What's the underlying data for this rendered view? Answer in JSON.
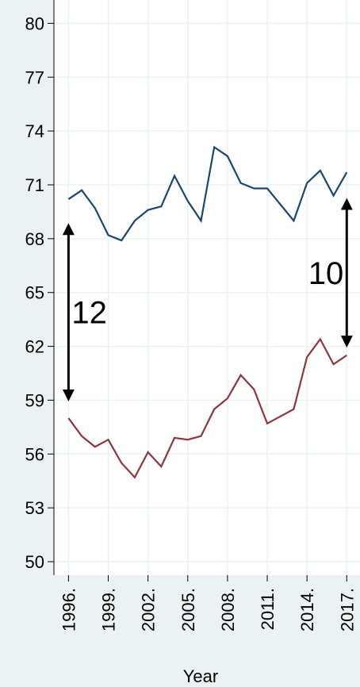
{
  "chart_data": {
    "type": "line",
    "x_label": "Year",
    "x": [
      1996,
      1997,
      1998,
      1999,
      2000,
      2001,
      2002,
      2003,
      2004,
      2005,
      2006,
      2007,
      2008,
      2009,
      2010,
      2011,
      2012,
      2013,
      2014,
      2015,
      2016,
      2017
    ],
    "series": [
      {
        "color": "#1a476f",
        "values": [
          70.2,
          70.7,
          69.7,
          68.2,
          67.9,
          69.0,
          69.6,
          69.8,
          71.5,
          70.1,
          69.0,
          73.1,
          72.6,
          71.1,
          70.8,
          70.8,
          69.9,
          69.0,
          71.1,
          71.8,
          70.4,
          71.7
        ]
      },
      {
        "color": "#90353b",
        "values": [
          58.0,
          57.0,
          56.4,
          56.8,
          55.5,
          54.7,
          56.1,
          55.3,
          56.9,
          56.8,
          57.0,
          58.5,
          59.1,
          60.4,
          59.6,
          57.7,
          58.1,
          58.5,
          61.4,
          62.4,
          61.0,
          61.5
        ]
      }
    ],
    "xlim": [
      1994.9,
      2018.0
    ],
    "ylim": [
      49.25,
      81.3
    ],
    "xticks": [
      {
        "value": 1996,
        "label": "1996."
      },
      {
        "value": 1999,
        "label": "1999."
      },
      {
        "value": 2002,
        "label": "2002."
      },
      {
        "value": 2005,
        "label": "2005."
      },
      {
        "value": 2008,
        "label": "2008."
      },
      {
        "value": 2011,
        "label": "2011."
      },
      {
        "value": 2014,
        "label": "2014."
      },
      {
        "value": 2017,
        "label": "2017."
      }
    ],
    "yticks": [
      50,
      53,
      56,
      59,
      62,
      65,
      68,
      71,
      74,
      77,
      80
    ],
    "grid": true,
    "annotations": [
      {
        "text": "12",
        "x": 1996,
        "y": [
          68.8,
          59.0
        ],
        "side": "right"
      },
      {
        "text": "10",
        "x": 2017,
        "y": [
          70.2,
          62.0
        ],
        "side": "left"
      }
    ]
  }
}
